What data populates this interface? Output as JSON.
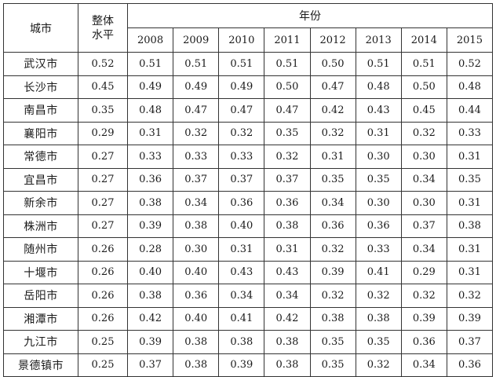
{
  "header": {
    "city": "城市",
    "overall_line1": "整体",
    "overall_line2": "水平",
    "years_group": "年份",
    "years": [
      "2008",
      "2009",
      "2010",
      "2011",
      "2012",
      "2013",
      "2014",
      "2015"
    ]
  },
  "rows": [
    {
      "city": "武汉市",
      "overall": "0.52",
      "values": [
        "0.51",
        "0.51",
        "0.51",
        "0.51",
        "0.50",
        "0.51",
        "0.51",
        "0.52"
      ]
    },
    {
      "city": "长沙市",
      "overall": "0.45",
      "values": [
        "0.49",
        "0.49",
        "0.49",
        "0.50",
        "0.47",
        "0.48",
        "0.50",
        "0.48"
      ]
    },
    {
      "city": "南昌市",
      "overall": "0.35",
      "values": [
        "0.48",
        "0.47",
        "0.47",
        "0.47",
        "0.42",
        "0.43",
        "0.45",
        "0.44"
      ]
    },
    {
      "city": "襄阳市",
      "overall": "0.29",
      "values": [
        "0.31",
        "0.32",
        "0.32",
        "0.35",
        "0.32",
        "0.31",
        "0.32",
        "0.33"
      ]
    },
    {
      "city": "常德市",
      "overall": "0.27",
      "values": [
        "0.33",
        "0.33",
        "0.33",
        "0.32",
        "0.31",
        "0.30",
        "0.30",
        "0.31"
      ]
    },
    {
      "city": "宜昌市",
      "overall": "0.27",
      "values": [
        "0.36",
        "0.37",
        "0.37",
        "0.37",
        "0.35",
        "0.35",
        "0.34",
        "0.35"
      ]
    },
    {
      "city": "新余市",
      "overall": "0.27",
      "values": [
        "0.38",
        "0.34",
        "0.36",
        "0.36",
        "0.34",
        "0.30",
        "0.30",
        "0.31"
      ]
    },
    {
      "city": "株洲市",
      "overall": "0.27",
      "values": [
        "0.39",
        "0.38",
        "0.40",
        "0.38",
        "0.36",
        "0.36",
        "0.37",
        "0.38"
      ]
    },
    {
      "city": "随州市",
      "overall": "0.26",
      "values": [
        "0.28",
        "0.30",
        "0.31",
        "0.31",
        "0.32",
        "0.33",
        "0.34",
        "0.31"
      ]
    },
    {
      "city": "十堰市",
      "overall": "0.26",
      "values": [
        "0.40",
        "0.40",
        "0.43",
        "0.43",
        "0.39",
        "0.41",
        "0.29",
        "0.31"
      ]
    },
    {
      "city": "岳阳市",
      "overall": "0.26",
      "values": [
        "0.38",
        "0.36",
        "0.34",
        "0.34",
        "0.32",
        "0.32",
        "0.32",
        "0.32"
      ]
    },
    {
      "city": "湘潭市",
      "overall": "0.26",
      "values": [
        "0.42",
        "0.40",
        "0.41",
        "0.42",
        "0.38",
        "0.38",
        "0.39",
        "0.39"
      ]
    },
    {
      "city": "九江市",
      "overall": "0.25",
      "values": [
        "0.39",
        "0.38",
        "0.38",
        "0.38",
        "0.35",
        "0.35",
        "0.36",
        "0.37"
      ]
    },
    {
      "city": "景德镇市",
      "overall": "0.25",
      "values": [
        "0.37",
        "0.38",
        "0.39",
        "0.38",
        "0.35",
        "0.32",
        "0.34",
        "0.36"
      ]
    }
  ]
}
